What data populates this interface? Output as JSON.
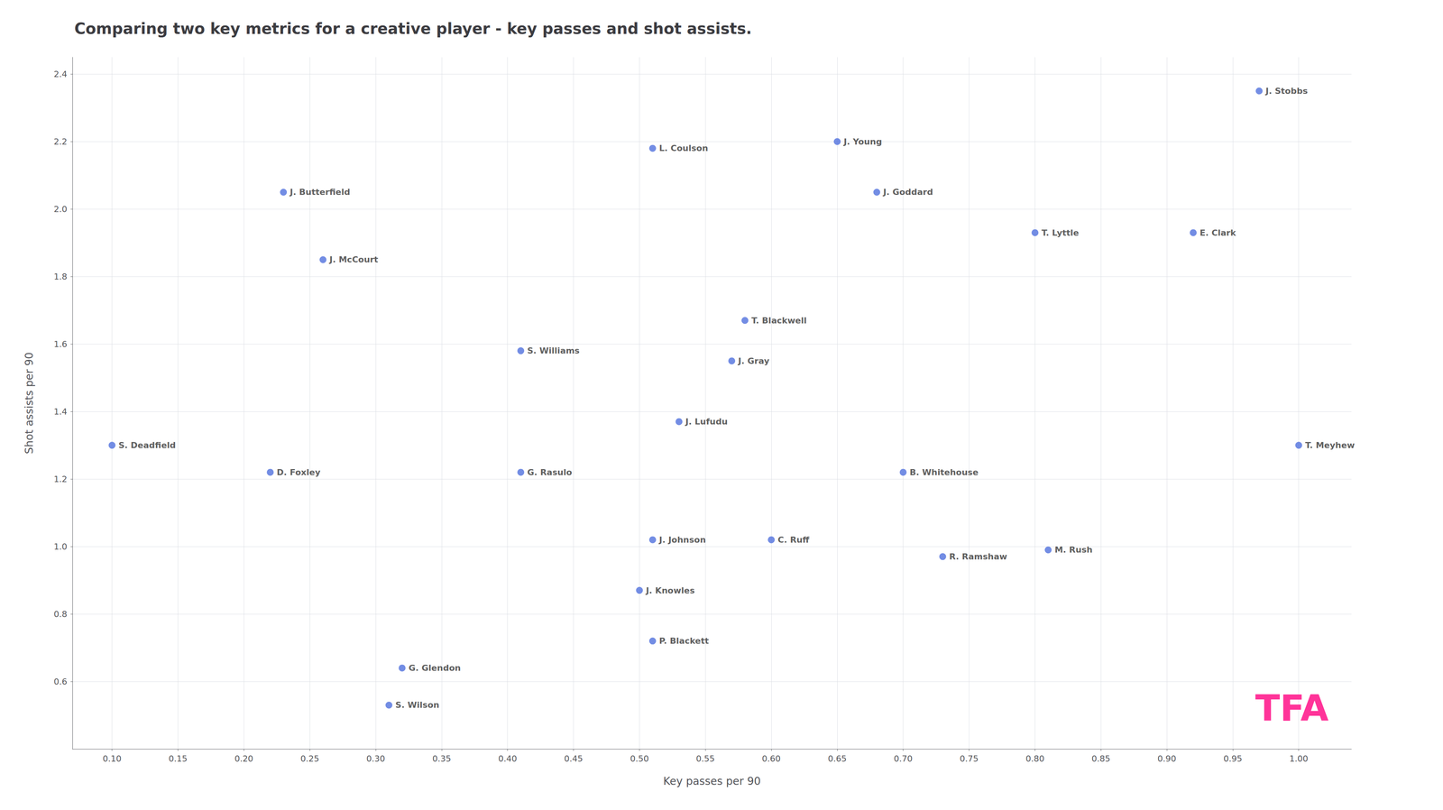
{
  "chart_data": {
    "type": "scatter",
    "title": "Comparing two key metrics for a creative player - key passes and shot assists.",
    "xlabel": "Key passes per 90",
    "ylabel": "Shot assists per 90",
    "labels": [
      "S. Deadfield",
      "J. Butterfield",
      "J. McCourt",
      "D. Foxley",
      "S. Wilson",
      "G. Glendon",
      "G. Rasulo",
      "S. Williams",
      "J. Knowles",
      "P. Blackett",
      "J. Johnson",
      "L. Coulson",
      "J. Lufudu",
      "J. Gray",
      "T. Blackwell",
      "C. Ruff",
      "J. Young",
      "J. Goddard",
      "B. Whitehouse",
      "R. Ramshaw",
      "T. Lyttle",
      "M. Rush",
      "E. Clark",
      "T. Meyhew",
      "J. Stobbs"
    ],
    "x": [
      0.1,
      0.23,
      0.26,
      0.22,
      0.31,
      0.32,
      0.41,
      0.41,
      0.5,
      0.51,
      0.51,
      0.51,
      0.53,
      0.57,
      0.58,
      0.6,
      0.65,
      0.68,
      0.7,
      0.73,
      0.8,
      0.81,
      0.92,
      1.0,
      0.97
    ],
    "values": [
      1.3,
      2.05,
      1.85,
      1.22,
      0.53,
      0.64,
      1.22,
      1.58,
      0.87,
      0.72,
      1.02,
      2.18,
      1.37,
      1.55,
      1.67,
      1.02,
      2.2,
      2.05,
      1.22,
      0.97,
      1.93,
      0.99,
      1.93,
      1.3,
      2.35
    ],
    "xlim": [
      0.07,
      1.04
    ],
    "ylim": [
      0.4,
      2.45
    ],
    "xticks": [
      {
        "value": 0.1,
        "label": "0.10"
      },
      0.15,
      {
        "value": 0.2,
        "label": "0.20"
      },
      0.25,
      {
        "value": 0.3,
        "label": "0.30"
      },
      0.35,
      {
        "value": 0.4,
        "label": "0.40"
      },
      0.45,
      {
        "value": 0.5,
        "label": "0.50"
      },
      0.55,
      {
        "value": 0.6,
        "label": "0.60"
      },
      0.65,
      {
        "value": 0.7,
        "label": "0.70"
      },
      0.75,
      {
        "value": 0.8,
        "label": "0.80"
      },
      0.85,
      {
        "value": 0.9,
        "label": "0.90"
      },
      0.95,
      {
        "value": 1.0,
        "label": "1.00"
      }
    ],
    "yticks": [
      0.6,
      0.8,
      {
        "value": 1.0,
        "label": "1.0"
      },
      1.2,
      1.4,
      1.6,
      1.8,
      {
        "value": 2.0,
        "label": "2.0"
      },
      2.2,
      2.4
    ],
    "grid": true,
    "annotations": [
      {
        "text": "TFA",
        "color": "#FF3399"
      }
    ]
  }
}
